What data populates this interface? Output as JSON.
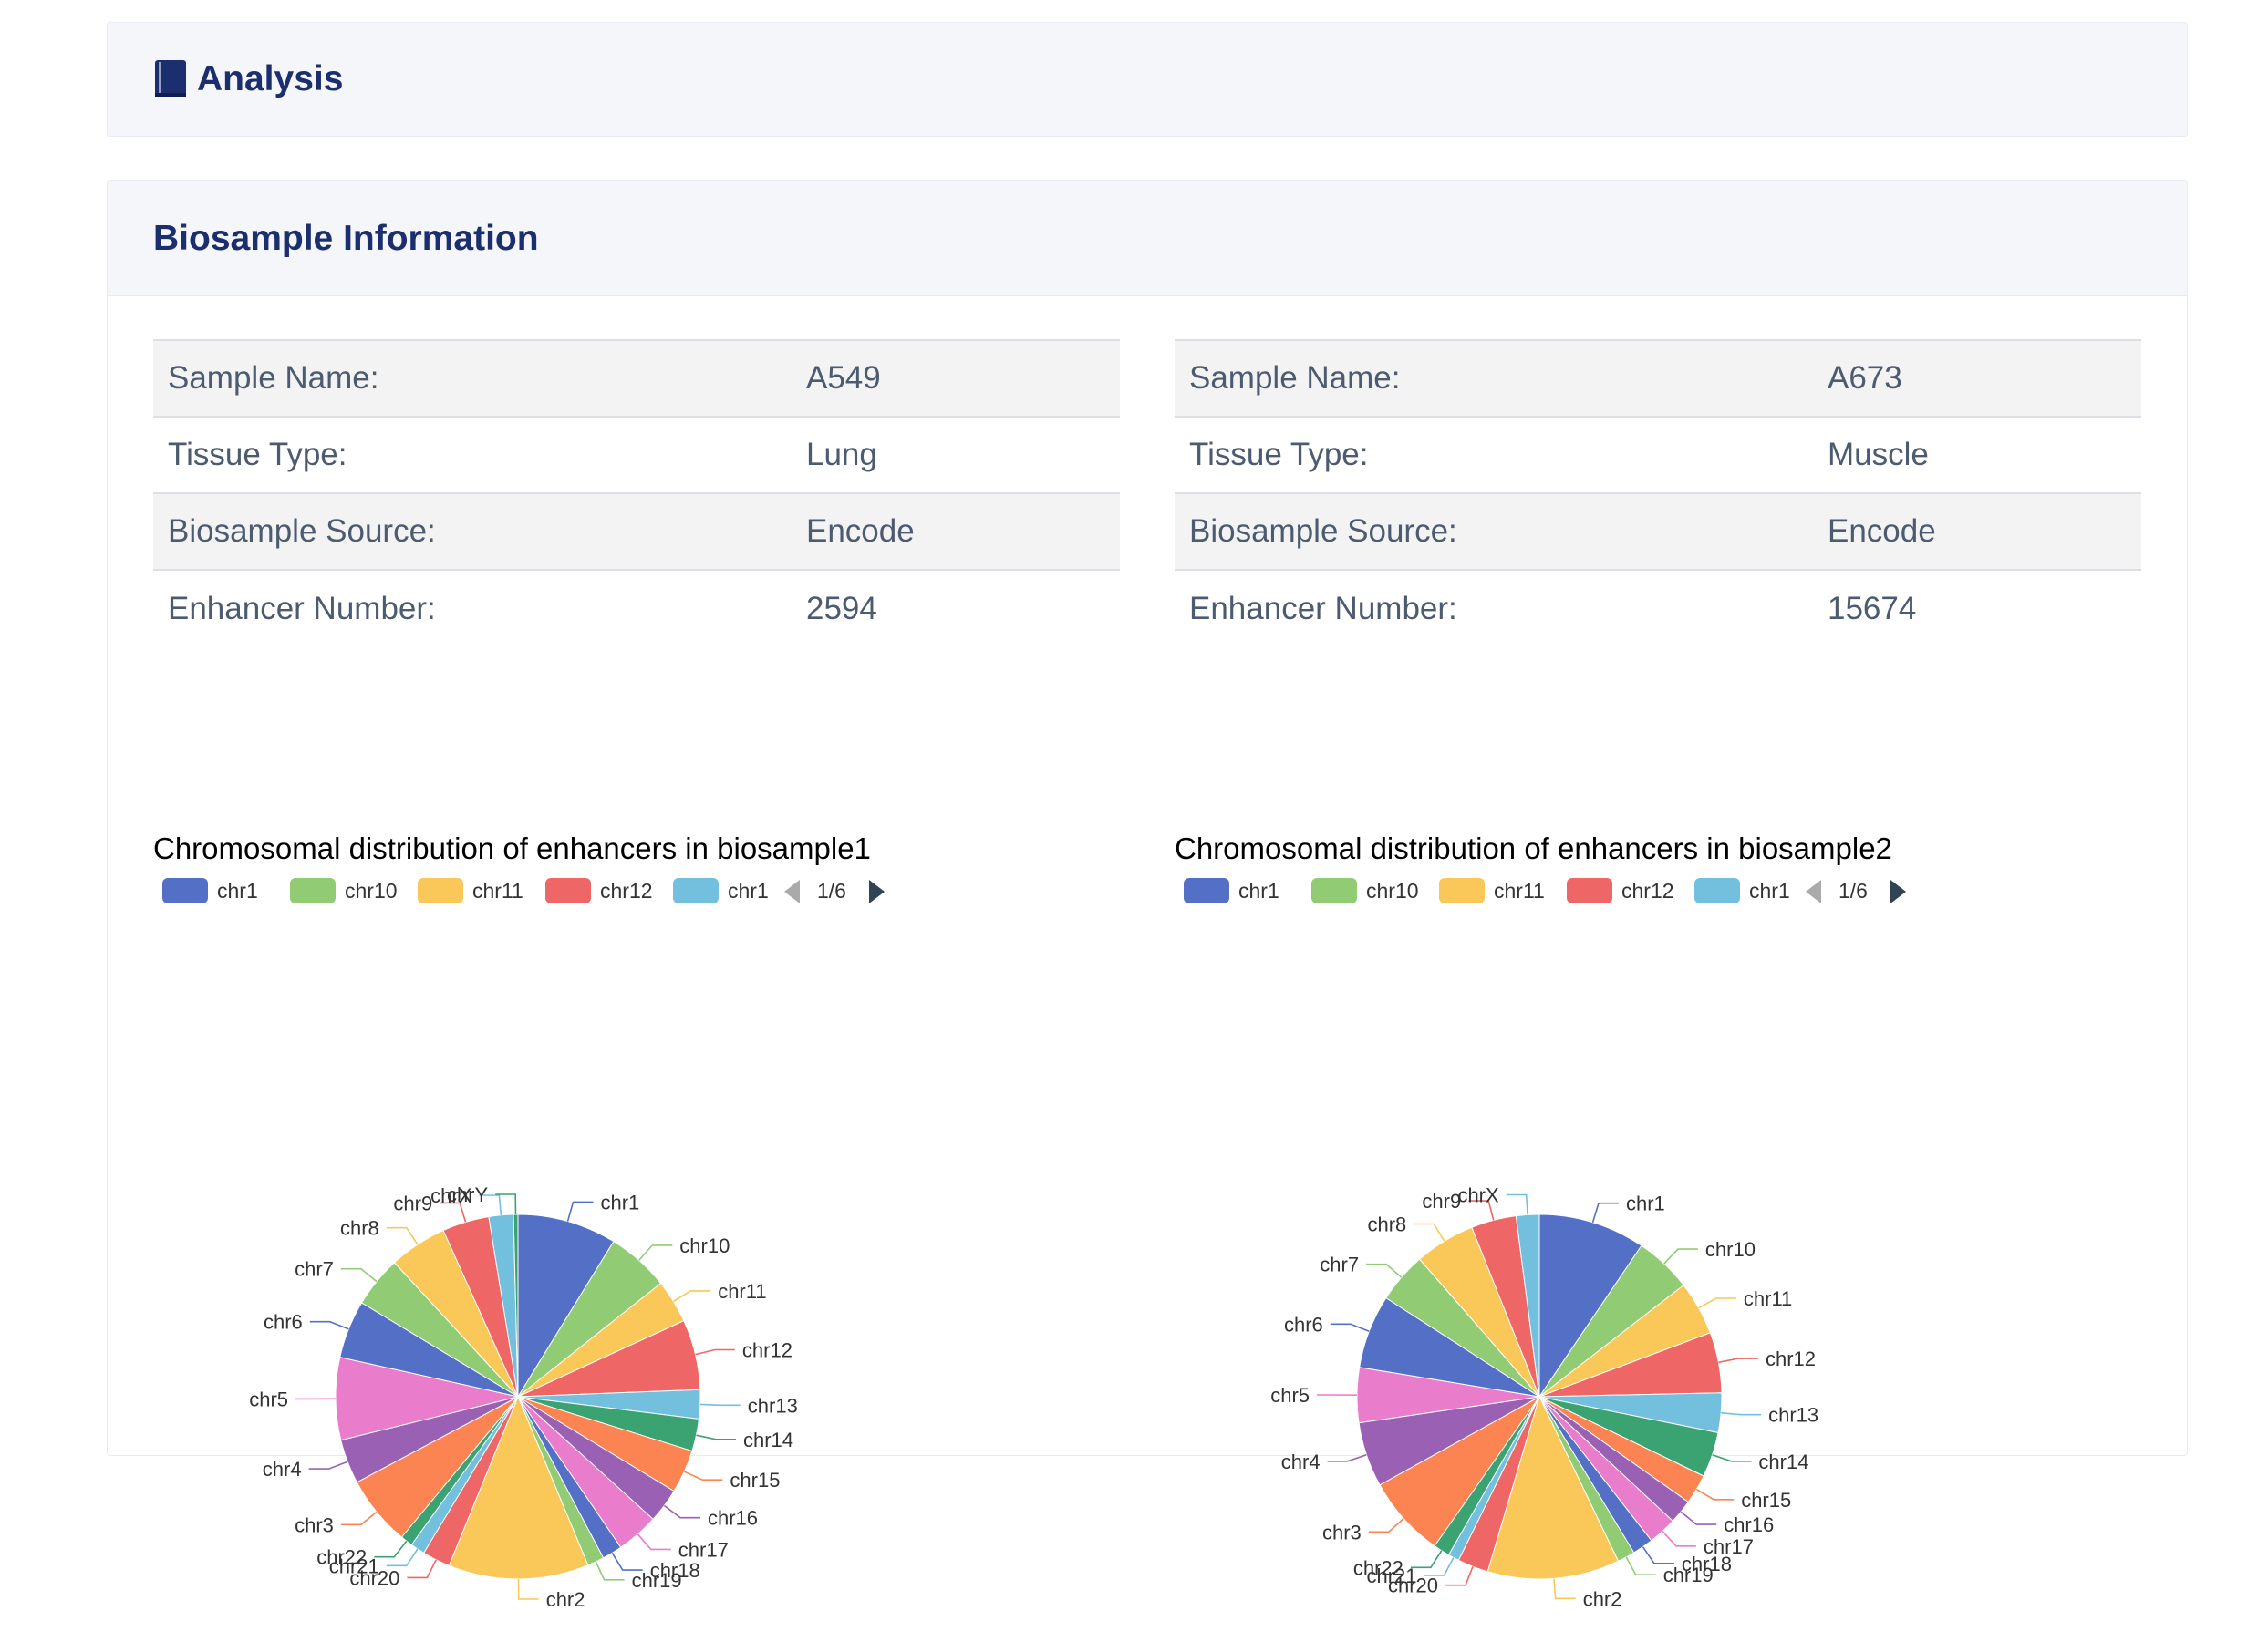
{
  "header": {
    "title": "Analysis",
    "icon": "book-icon"
  },
  "biosample": {
    "title": "Biosample Information",
    "samples": [
      {
        "rows": [
          {
            "label": "Sample Name:",
            "value": "A549"
          },
          {
            "label": "Tissue Type:",
            "value": "Lung"
          },
          {
            "label": "Biosample Source:",
            "value": "Encode"
          },
          {
            "label": "Enhancer Number:",
            "value": "2594"
          }
        ],
        "legend": {
          "items": [
            "chr1",
            "chr10",
            "chr11",
            "chr12",
            "chr1"
          ],
          "page": "1/6"
        }
      },
      {
        "rows": [
          {
            "label": "Sample Name:",
            "value": "A673"
          },
          {
            "label": "Tissue Type:",
            "value": "Muscle"
          },
          {
            "label": "Biosample Source:",
            "value": "Encode"
          },
          {
            "label": "Enhancer Number:",
            "value": "15674"
          }
        ],
        "legend": {
          "items": [
            "chr1",
            "chr10",
            "chr11",
            "chr12",
            "chr1"
          ],
          "page": "1/6"
        }
      }
    ]
  },
  "palette": [
    "#5470c6",
    "#91cc75",
    "#fac858",
    "#ee6666",
    "#73c0de",
    "#3ba272",
    "#fc8452",
    "#9a60b4",
    "#ea7ccc"
  ],
  "chart_data": [
    {
      "type": "pie",
      "title": "Chromosomal distribution of enhancers in biosample1",
      "categories": [
        "chr1",
        "chr10",
        "chr11",
        "chr12",
        "chr13",
        "chr14",
        "chr15",
        "chr16",
        "chr17",
        "chr18",
        "chr19",
        "chr2",
        "chr20",
        "chr21",
        "chr22",
        "chr3",
        "chr4",
        "chr5",
        "chr6",
        "chr7",
        "chr8",
        "chr9",
        "chrX",
        "chrY"
      ],
      "values": [
        8.9,
        5.6,
        3.9,
        6.3,
        2.6,
        2.9,
        3.9,
        3.1,
        3.8,
        1.8,
        1.5,
        12.6,
        2.5,
        1.3,
        1.1,
        6.3,
        4.0,
        7.4,
        5.2,
        4.6,
        5.2,
        4.2,
        2.2,
        0.4
      ]
    },
    {
      "type": "pie",
      "title": "Chromosomal distribution of enhancers in biosample2",
      "categories": [
        "chr1",
        "chr10",
        "chr11",
        "chr12",
        "chr13",
        "chr14",
        "chr15",
        "chr16",
        "chr17",
        "chr18",
        "chr19",
        "chr2",
        "chr20",
        "chr21",
        "chr22",
        "chr3",
        "chr4",
        "chr5",
        "chr6",
        "chr7",
        "chr8",
        "chr9",
        "chrX"
      ],
      "values": [
        9.7,
        5.2,
        4.9,
        5.5,
        3.6,
        4.1,
        2.7,
        2.2,
        2.6,
        1.9,
        1.6,
        12.0,
        2.8,
        1.0,
        1.5,
        7.4,
        5.9,
        5.0,
        6.7,
        4.6,
        5.5,
        4.1,
        2.1
      ]
    }
  ]
}
